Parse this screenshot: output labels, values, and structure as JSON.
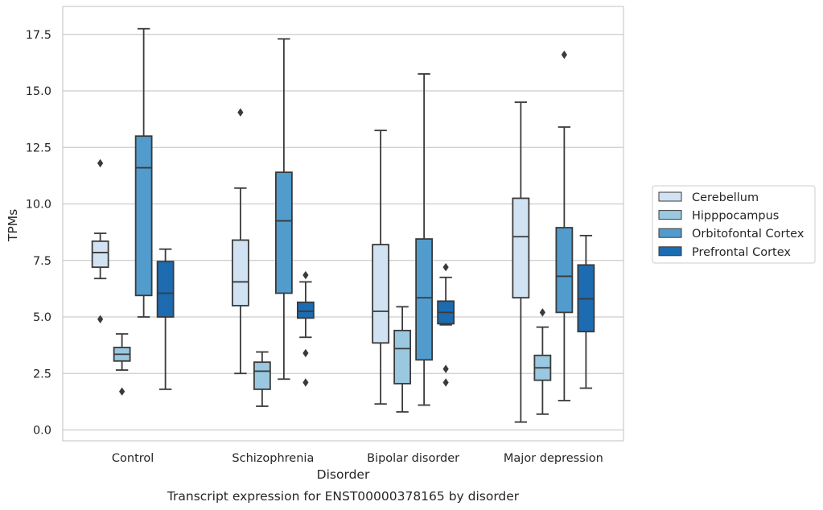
{
  "caption": "Transcript expression for ENST00000378165 by disorder",
  "colors": {
    "Cerebellum": "#d1e2f3",
    "Hipppocampus": "#9ac8e0",
    "Orbitofontal Cortex": "#519ccc",
    "Prefrontal Cortex": "#1d6bb0",
    "line": "#3a3a3a",
    "grid": "#cccccc",
    "frame": "#cccccc"
  },
  "chart_data": {
    "type": "box",
    "title": "",
    "xlabel": "Disorder",
    "ylabel": "TPMs",
    "ylim": [
      -0.45,
      18.5
    ],
    "yticks": [
      "0.0",
      "2.5",
      "5.0",
      "7.5",
      "10.0",
      "12.5",
      "15.0",
      "17.5"
    ],
    "categories": [
      "Control",
      "Schizophrenia",
      "Bipolar disorder",
      "Major depression"
    ],
    "grid": true,
    "legend_position": "right",
    "series": [
      {
        "name": "Cerebellum",
        "boxes": [
          {
            "wlo": 6.7,
            "q1": 7.2,
            "med": 7.85,
            "q3": 8.35,
            "whi": 8.7,
            "outliers": [
              11.8,
              4.9
            ]
          },
          {
            "wlo": 2.5,
            "q1": 5.5,
            "med": 6.55,
            "q3": 8.4,
            "whi": 10.7,
            "outliers": [
              14.05
            ]
          },
          {
            "wlo": 1.15,
            "q1": 3.85,
            "med": 5.25,
            "q3": 8.2,
            "whi": 13.25,
            "outliers": []
          },
          {
            "wlo": 0.35,
            "q1": 5.85,
            "med": 8.55,
            "q3": 10.25,
            "whi": 14.5,
            "outliers": []
          }
        ]
      },
      {
        "name": "Hipppocampus",
        "boxes": [
          {
            "wlo": 2.65,
            "q1": 3.05,
            "med": 3.35,
            "q3": 3.65,
            "whi": 4.25,
            "outliers": [
              1.7
            ]
          },
          {
            "wlo": 1.05,
            "q1": 1.8,
            "med": 2.6,
            "q3": 3.0,
            "whi": 3.45,
            "outliers": []
          },
          {
            "wlo": 0.8,
            "q1": 2.05,
            "med": 3.6,
            "q3": 4.4,
            "whi": 5.45,
            "outliers": []
          },
          {
            "wlo": 0.7,
            "q1": 2.2,
            "med": 2.75,
            "q3": 3.3,
            "whi": 4.55,
            "outliers": [
              5.2
            ]
          }
        ]
      },
      {
        "name": "Orbitofontal Cortex",
        "boxes": [
          {
            "wlo": 5.0,
            "q1": 5.95,
            "med": 11.6,
            "q3": 13.0,
            "whi": 17.75,
            "outliers": []
          },
          {
            "wlo": 2.25,
            "q1": 6.05,
            "med": 9.25,
            "q3": 11.4,
            "whi": 17.3,
            "outliers": []
          },
          {
            "wlo": 1.1,
            "q1": 3.1,
            "med": 5.85,
            "q3": 8.45,
            "whi": 15.75,
            "outliers": []
          },
          {
            "wlo": 1.3,
            "q1": 5.2,
            "med": 6.8,
            "q3": 8.95,
            "whi": 13.4,
            "outliers": [
              16.6
            ]
          }
        ]
      },
      {
        "name": "Prefrontal Cortex",
        "boxes": [
          {
            "wlo": 1.8,
            "q1": 5.0,
            "med": 6.05,
            "q3": 7.45,
            "whi": 8.0,
            "outliers": []
          },
          {
            "wlo": 4.1,
            "q1": 4.95,
            "med": 5.25,
            "q3": 5.65,
            "whi": 6.55,
            "outliers": [
              6.85,
              3.4,
              2.1
            ]
          },
          {
            "wlo": 4.65,
            "q1": 4.7,
            "med": 5.2,
            "q3": 5.7,
            "whi": 6.75,
            "outliers": [
              7.2,
              2.7,
              2.1
            ]
          },
          {
            "wlo": 1.85,
            "q1": 4.35,
            "med": 5.8,
            "q3": 7.3,
            "whi": 8.6,
            "outliers": []
          }
        ]
      }
    ]
  }
}
